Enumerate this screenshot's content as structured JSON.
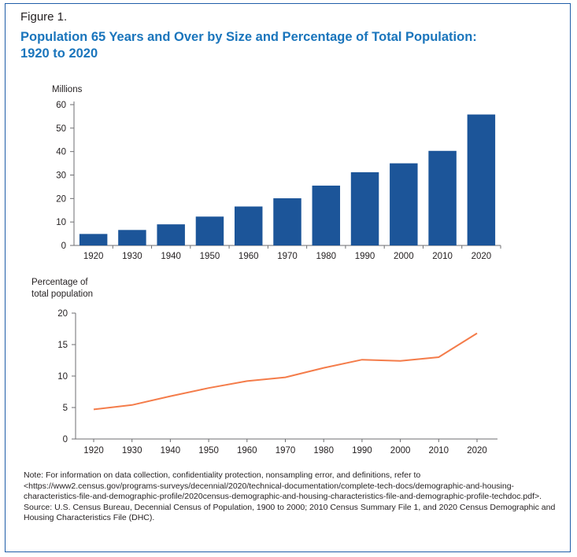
{
  "figure_label": "Figure 1.",
  "title_line1": "Population 65 Years and Over by Size and Percentage of Total Population:",
  "title_line2": "1920 to 2020",
  "note": "Note: For information on data collection, confidentiality protection, nonsampling error, and definitions, refer to <https://www2.census.gov/programs-surveys/decennial/2020/technical-documentation/complete-tech-docs/demographic-and-housing-characteristics-file-and-demographic-profile/2020census-demographic-and-housing-characteristics-file-and-demographic-profile-techdoc.pdf>.",
  "source": "Source: U.S. Census Bureau, Decennial Census of Population, 1900 to 2000; 2010 Census Summary File 1, and 2020 Census Demographic and Housing Characteristics File (DHC).",
  "colors": {
    "bar": "#1c5599",
    "line": "#f47c4a",
    "title": "#1a75bc",
    "frame": "#1f5da8"
  },
  "chart_data": [
    {
      "type": "bar",
      "ylabel": "Millions",
      "ylim": [
        0,
        60
      ],
      "yticks": [
        0,
        10,
        20,
        30,
        40,
        50,
        60
      ],
      "categories": [
        "1920",
        "1930",
        "1940",
        "1950",
        "1960",
        "1970",
        "1980",
        "1990",
        "2000",
        "2010",
        "2020"
      ],
      "values": [
        4.9,
        6.6,
        9.0,
        12.3,
        16.6,
        20.1,
        25.5,
        31.2,
        35.0,
        40.3,
        55.8
      ],
      "grid": false
    },
    {
      "type": "line",
      "ylabel_lines": [
        "Percentage of",
        "total population"
      ],
      "ylim": [
        0,
        20
      ],
      "yticks": [
        0,
        5,
        10,
        15,
        20
      ],
      "categories": [
        "1920",
        "1930",
        "1940",
        "1950",
        "1960",
        "1970",
        "1980",
        "1990",
        "2000",
        "2010",
        "2020"
      ],
      "values": [
        4.7,
        5.4,
        6.8,
        8.1,
        9.2,
        9.8,
        11.3,
        12.6,
        12.4,
        13.0,
        16.8
      ],
      "grid": false
    }
  ]
}
